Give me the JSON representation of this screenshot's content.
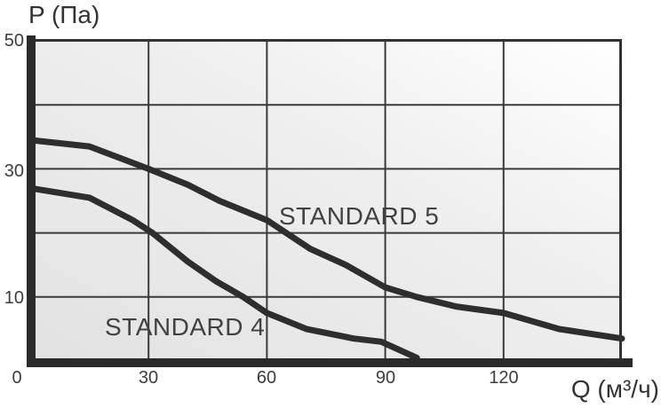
{
  "chart_data": {
    "type": "line",
    "title": "",
    "xlabel": "Q (м³/ч)",
    "ylabel": "P (Па)",
    "xlim": [
      0,
      150
    ],
    "ylim": [
      0,
      50
    ],
    "x_tick_labels": [
      "0",
      "30",
      "60",
      "90",
      "120"
    ],
    "y_tick_labels": [
      "50",
      "30",
      "10"
    ],
    "x_gridlines": [
      30,
      60,
      90,
      120
    ],
    "y_gridlines": [
      10,
      20,
      30,
      40
    ],
    "grid": true,
    "legend_position": "inline-curve-labels",
    "series": [
      {
        "name": "STANDARD 5",
        "x": [
          0,
          15,
          30,
          40,
          48,
          60,
          71,
          80,
          90,
          98,
          108,
          120,
          134,
          150
        ],
        "y": [
          34.5,
          33.5,
          30,
          27.5,
          25,
          22,
          17.5,
          15,
          11.5,
          10,
          8.5,
          7.5,
          5,
          3.5
        ]
      },
      {
        "name": "STANDARD 4",
        "x": [
          0,
          15,
          26,
          31,
          40,
          47,
          54,
          60,
          70,
          78,
          82,
          89,
          98
        ],
        "y": [
          27,
          25.5,
          22,
          20,
          15.5,
          12.5,
          10,
          7.5,
          5,
          4,
          3.5,
          3,
          0.5
        ]
      }
    ]
  },
  "colors": {
    "curve": "#2e2e2e",
    "axis_bar": "#2b2b2b",
    "border": "#333333",
    "gridline": "#3a3a3a",
    "plot_bg_from": "#e2e2e2",
    "plot_bg_to": "#ffffff"
  }
}
